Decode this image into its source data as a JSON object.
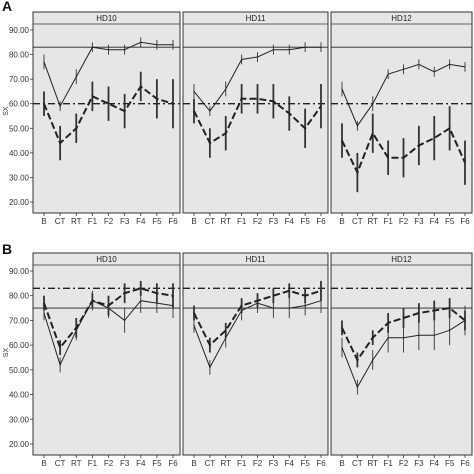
{
  "figure_labels": [
    "A",
    "B"
  ],
  "chart_data": [
    {
      "type": "line",
      "figure_label": "A",
      "ylabel": "SX",
      "ylim": [
        20,
        95
      ],
      "yticks": [
        "20.00",
        "30.00",
        "40.00",
        "50.00",
        "60.00",
        "70.00",
        "80.00",
        "90.00"
      ],
      "categories": [
        "B",
        "CT",
        "RT",
        "F1",
        "F2",
        "F3",
        "F4",
        "F5",
        "F6"
      ],
      "reference_lines": [
        {
          "style": "solid",
          "value": 83
        },
        {
          "style": "dash-dot",
          "value": 60
        }
      ],
      "panels": [
        {
          "title": "HD10",
          "series": [
            {
              "style": "solid",
              "values": [
                77,
                59,
                71,
                83,
                82,
                82,
                85,
                84,
                84
              ],
              "err": [
                3,
                2,
                3,
                2,
                2,
                2,
                2,
                2,
                2
              ]
            },
            {
              "style": "dashed",
              "values": [
                60,
                44,
                50,
                63,
                60,
                57,
                67,
                62,
                60
              ],
              "err": [
                5,
                7,
                6,
                6,
                7,
                7,
                6,
                8,
                10
              ]
            }
          ]
        },
        {
          "title": "HD11",
          "series": [
            {
              "style": "solid",
              "values": [
                65,
                57,
                66,
                78,
                79,
                82,
                82,
                83,
                83
              ],
              "err": [
                3,
                2,
                3,
                2,
                2,
                2,
                2,
                2,
                2
              ]
            },
            {
              "style": "dashed",
              "values": [
                57,
                44,
                48,
                62,
                62,
                61,
                56,
                50,
                59
              ],
              "err": [
                5,
                6,
                7,
                6,
                6,
                7,
                7,
                8,
                9
              ]
            }
          ]
        },
        {
          "title": "HD12",
          "series": [
            {
              "style": "solid",
              "values": [
                66,
                51,
                60,
                72,
                74,
                76,
                73,
                76,
                75
              ],
              "err": [
                3,
                2,
                3,
                2,
                2,
                2,
                2,
                2,
                2
              ]
            },
            {
              "style": "dashed",
              "values": [
                45,
                32,
                48,
                38,
                38,
                43,
                46,
                50,
                36
              ],
              "err": [
                7,
                8,
                8,
                7,
                8,
                8,
                9,
                9,
                9
              ]
            }
          ]
        }
      ]
    },
    {
      "type": "line",
      "figure_label": "B",
      "ylabel": "SX",
      "ylim": [
        20,
        95
      ],
      "yticks": [
        "20.00",
        "30.00",
        "40.00",
        "50.00",
        "60.00",
        "70.00",
        "80.00",
        "90.00"
      ],
      "categories": [
        "B",
        "CT",
        "RT",
        "F1",
        "F2",
        "F3",
        "F4",
        "F5",
        "F6"
      ],
      "reference_lines": [
        {
          "style": "dash-dot",
          "value": 83
        },
        {
          "style": "solid",
          "value": 75
        }
      ],
      "panels": [
        {
          "title": "HD10",
          "series": [
            {
              "style": "solid",
              "values": [
                73,
                52,
                66,
                78,
                75,
                70,
                78,
                77,
                76
              ],
              "err": [
                3,
                3,
                4,
                4,
                4,
                5,
                5,
                4,
                5
              ]
            },
            {
              "style": "dashed",
              "values": [
                77,
                59,
                67,
                78,
                76,
                81,
                83,
                81,
                80
              ],
              "err": [
                3,
                3,
                4,
                3,
                4,
                4,
                3,
                4,
                5
              ]
            }
          ]
        },
        {
          "title": "HD11",
          "series": [
            {
              "style": "solid",
              "values": [
                68,
                51,
                63,
                74,
                77,
                75,
                75,
                76,
                78
              ],
              "err": [
                3,
                3,
                4,
                4,
                4,
                4,
                4,
                4,
                5
              ]
            },
            {
              "style": "dashed",
              "values": [
                73,
                60,
                66,
                76,
                78,
                80,
                82,
                80,
                82
              ],
              "err": [
                3,
                3,
                3,
                3,
                3,
                3,
                3,
                3,
                4
              ]
            }
          ]
        },
        {
          "title": "HD12",
          "series": [
            {
              "style": "solid",
              "values": [
                59,
                43,
                54,
                63,
                63,
                64,
                64,
                66,
                70
              ],
              "err": [
                4,
                3,
                4,
                6,
                6,
                6,
                6,
                6,
                6
              ]
            },
            {
              "style": "dashed",
              "values": [
                67,
                54,
                63,
                69,
                71,
                73,
                74,
                75,
                70
              ],
              "err": [
                3,
                3,
                3,
                4,
                4,
                4,
                4,
                4,
                4
              ]
            }
          ]
        }
      ]
    }
  ]
}
